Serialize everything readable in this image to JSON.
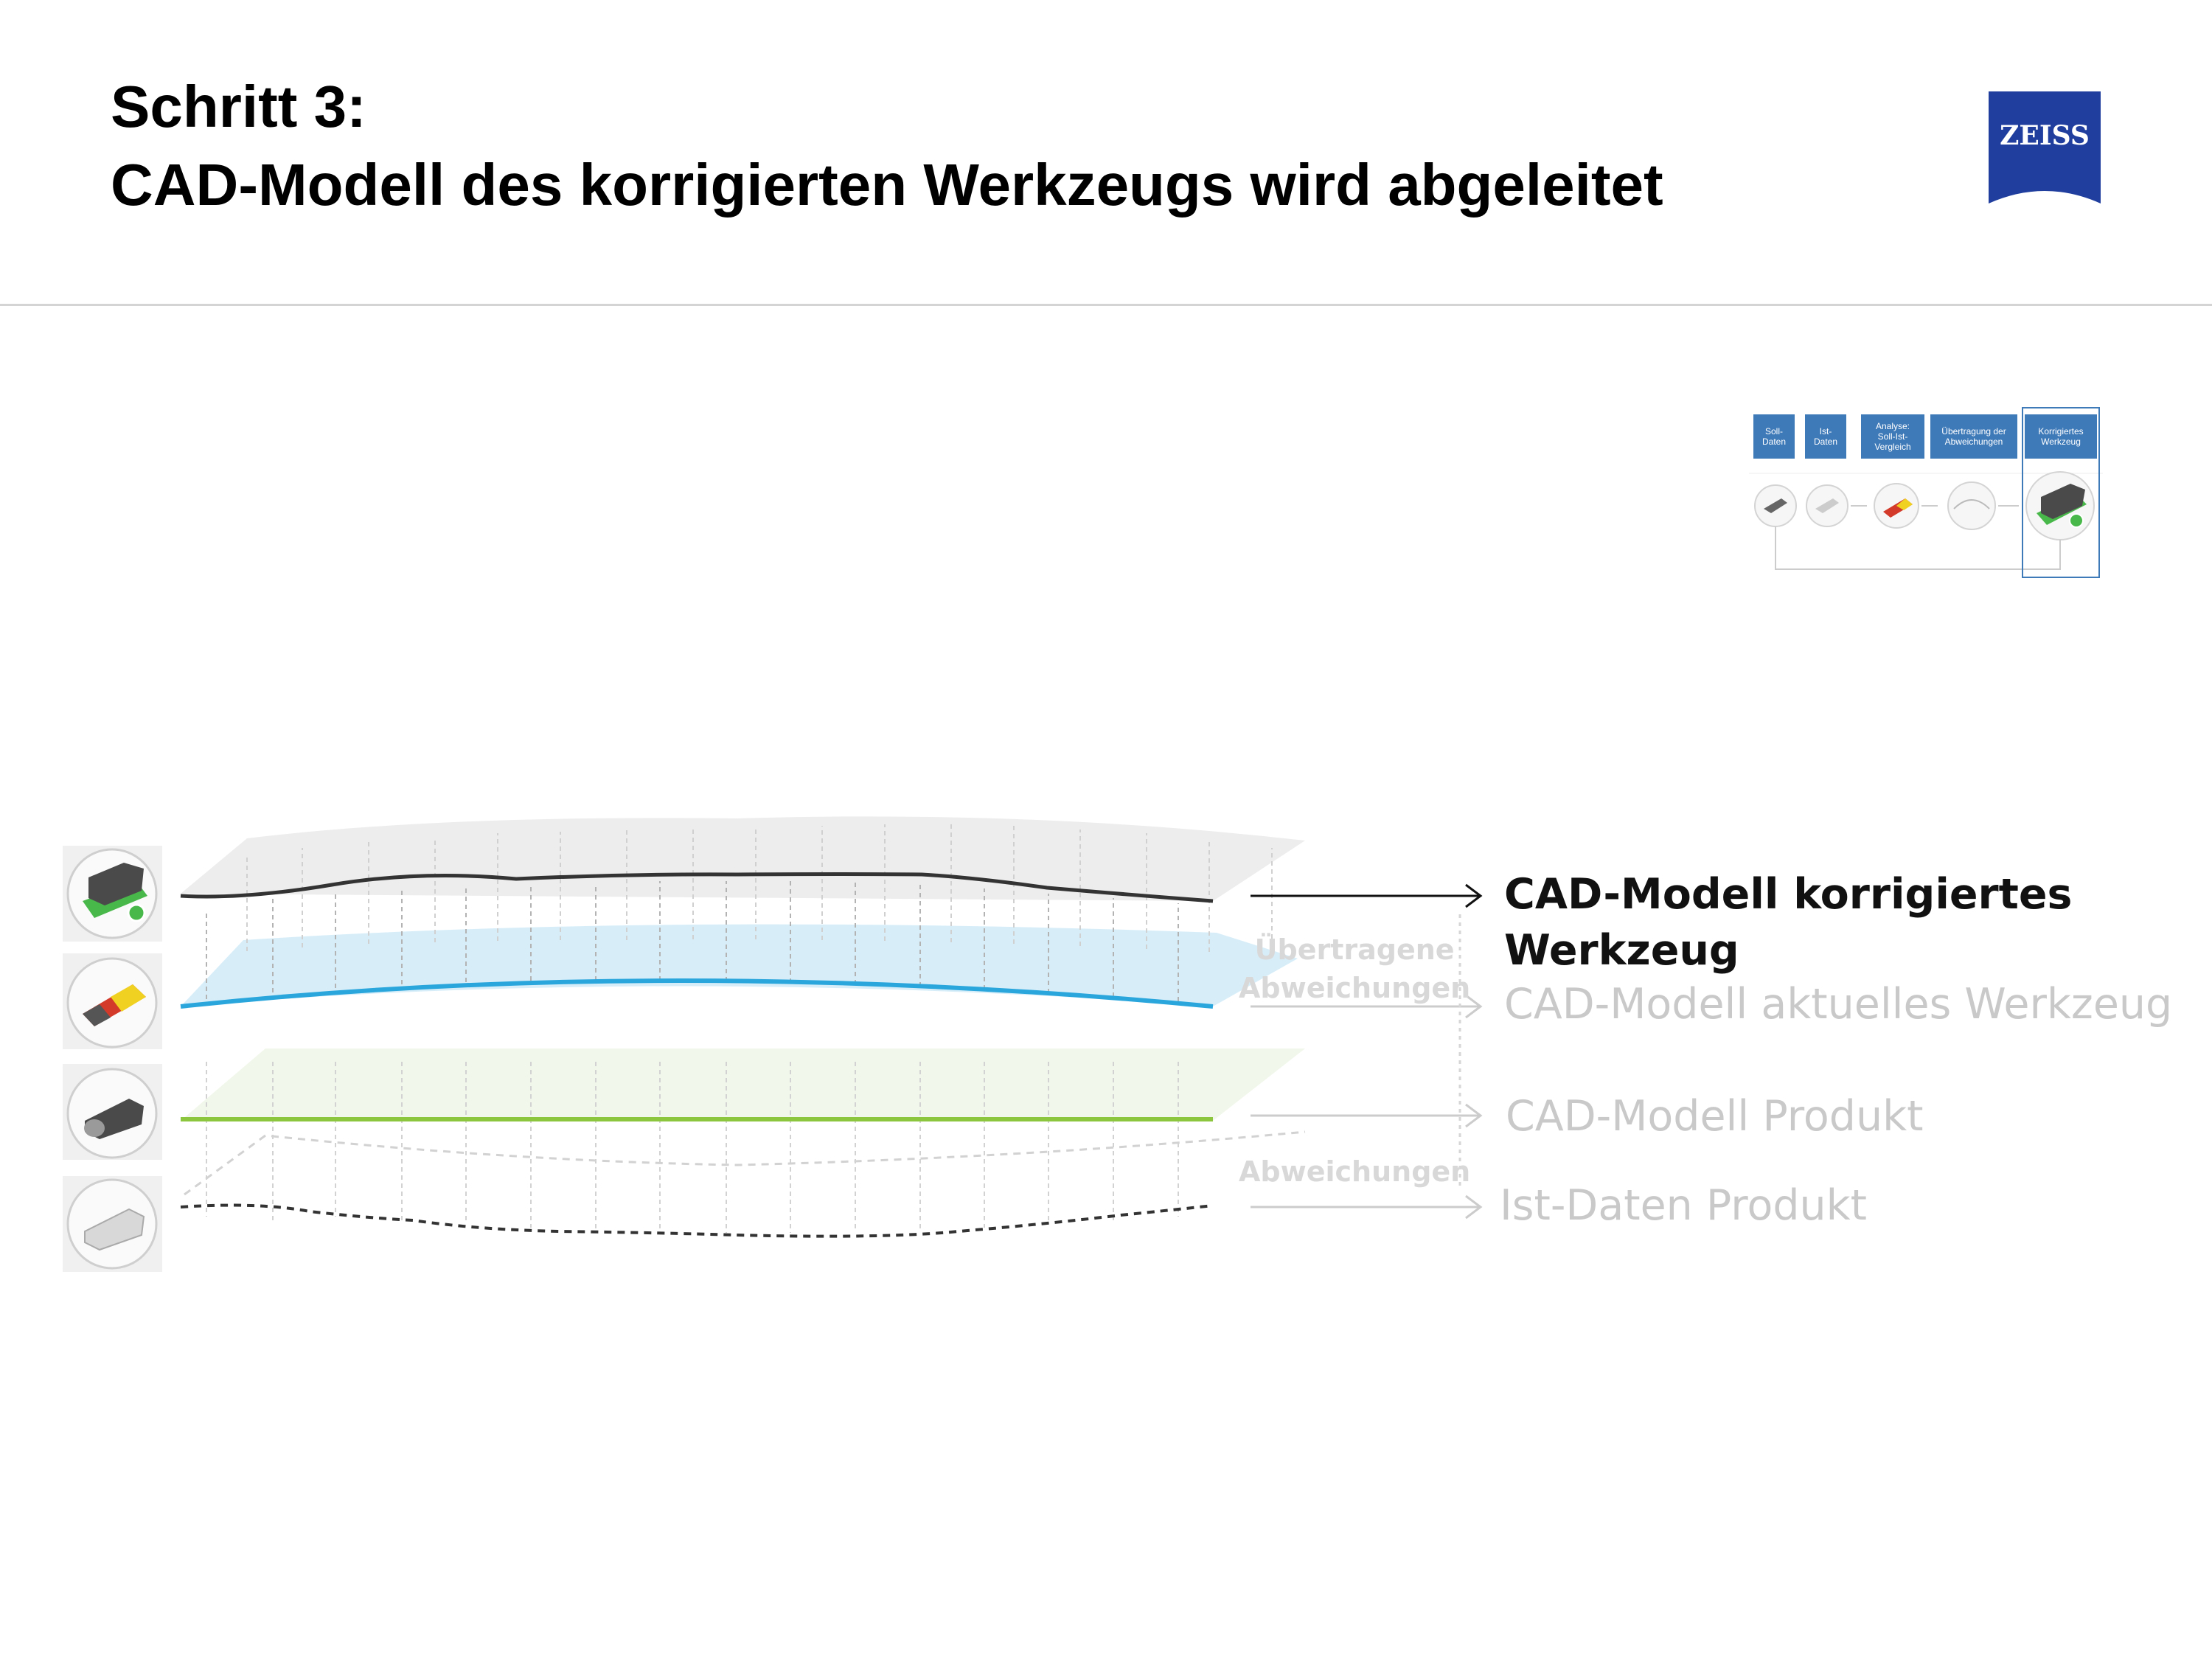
{
  "title": {
    "line1": "Schritt 3:",
    "line2": "CAD-Modell des korrigierten Werkzeugs wird abgeleitet"
  },
  "logo": {
    "text": "ZEISS",
    "color": "#1f3e9e"
  },
  "process_steps": [
    {
      "lines": [
        "Soll-",
        "Daten"
      ]
    },
    {
      "lines": [
        "Ist-",
        "Daten"
      ]
    },
    {
      "lines": [
        "Analyse:",
        "Soll-Ist-",
        "Vergleich"
      ]
    },
    {
      "lines": [
        "Übertragung der",
        "Abweichungen"
      ]
    },
    {
      "lines": [
        "Korrigiertes",
        "Werkzeug"
      ]
    }
  ],
  "layers": {
    "corrected_tool": {
      "line1": "CAD-Modell korrigiertes",
      "line2": "Werkzeug",
      "color": "#333333"
    },
    "current_tool": {
      "text": "CAD-Modell aktuelles Werkzeug",
      "color": "#2ba6dc"
    },
    "product": {
      "text": "CAD-Modell Produkt",
      "color": "#8cc63f"
    },
    "actual": {
      "text": "Ist-Daten Produkt",
      "color": "#333333"
    }
  },
  "annotations": {
    "transferred_line1": "Übertragene",
    "transferred_line2": "Abweichungen",
    "deviations": "Abweichungen"
  },
  "icons": [
    "corrected-tool-icon",
    "deviation-analysis-icon",
    "tool-model-icon",
    "scan-data-icon"
  ]
}
